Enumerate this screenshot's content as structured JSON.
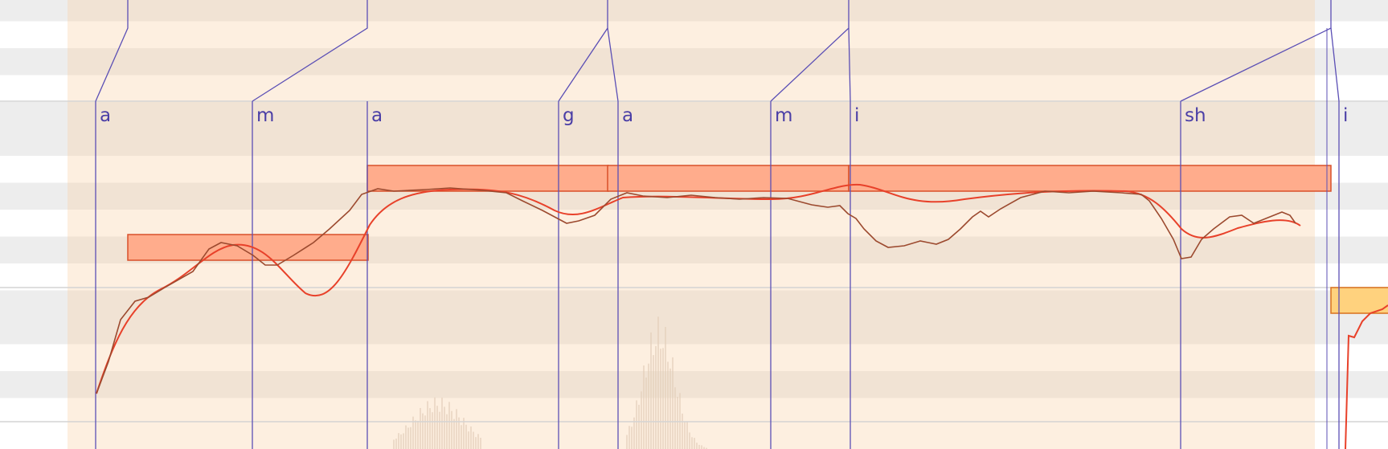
{
  "app": "pitch / phoneme editor",
  "colors": {
    "row_light": "#ffffff",
    "row_dark": "#ededed",
    "row_light_selected": "#fdefe0",
    "row_dark_selected": "#f1e3d4",
    "octave_line": "#d3d3d3",
    "phoneme_line": "#5b4fb5",
    "phoneme_text": "#4a3ea6",
    "note_fill": "#ffac8c",
    "note_border": "#d9502a",
    "note_fill_active": "#ffd27e",
    "note_border_active": "#d9711d",
    "pitch_curve": "#e8412a",
    "pitch_raw": "#9c4a2f",
    "waveform": "#e2cdb8"
  },
  "phonemes": [
    {
      "text": "a"
    },
    {
      "text": "m"
    },
    {
      "text": "a"
    },
    {
      "text": "g"
    },
    {
      "text": "a"
    },
    {
      "text": "m"
    },
    {
      "text": "i"
    },
    {
      "text": "sh"
    },
    {
      "text": "i"
    }
  ],
  "notes": [
    {
      "name": "note-1",
      "state": "normal"
    },
    {
      "name": "note-2",
      "state": "normal"
    },
    {
      "name": "note-3",
      "state": "normal"
    },
    {
      "name": "note-4",
      "state": "normal"
    },
    {
      "name": "note-5",
      "state": "active"
    }
  ]
}
